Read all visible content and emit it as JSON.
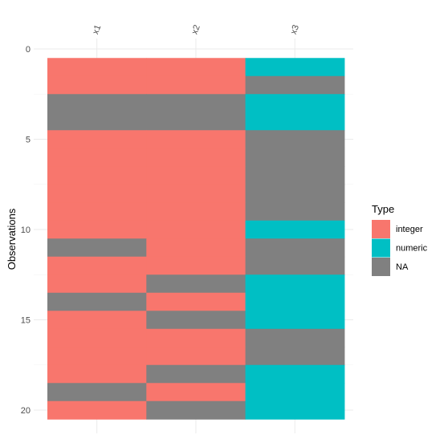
{
  "chart_data": {
    "type": "heatmap",
    "title": "",
    "xlabel": "",
    "ylabel": "Observations",
    "columns": [
      "x1",
      "x2",
      "x3"
    ],
    "rows": [
      1,
      2,
      3,
      4,
      5,
      6,
      7,
      8,
      9,
      10,
      11,
      12,
      13,
      14,
      15,
      16,
      17,
      18,
      19,
      20
    ],
    "y_ticks": [
      0,
      5,
      10,
      15,
      20
    ],
    "ylim": [
      0,
      20.5
    ],
    "y_reversed": true,
    "grid": true,
    "legend": {
      "title": "Type",
      "position": "right",
      "entries": [
        {
          "key": "integer",
          "label": "integer",
          "color": "#F8766D"
        },
        {
          "key": "numeric",
          "label": "numeric",
          "color": "#00BFC4"
        },
        {
          "key": "NA",
          "label": "NA",
          "color": "#808080"
        }
      ]
    },
    "values": [
      [
        "integer",
        "integer",
        "numeric"
      ],
      [
        "integer",
        "integer",
        "NA"
      ],
      [
        "NA",
        "NA",
        "numeric"
      ],
      [
        "NA",
        "NA",
        "numeric"
      ],
      [
        "integer",
        "integer",
        "NA"
      ],
      [
        "integer",
        "integer",
        "NA"
      ],
      [
        "integer",
        "integer",
        "NA"
      ],
      [
        "integer",
        "integer",
        "NA"
      ],
      [
        "integer",
        "integer",
        "NA"
      ],
      [
        "integer",
        "integer",
        "numeric"
      ],
      [
        "NA",
        "integer",
        "NA"
      ],
      [
        "integer",
        "integer",
        "NA"
      ],
      [
        "integer",
        "NA",
        "numeric"
      ],
      [
        "NA",
        "integer",
        "numeric"
      ],
      [
        "integer",
        "NA",
        "numeric"
      ],
      [
        "integer",
        "integer",
        "NA"
      ],
      [
        "integer",
        "integer",
        "NA"
      ],
      [
        "integer",
        "NA",
        "numeric"
      ],
      [
        "NA",
        "integer",
        "numeric"
      ],
      [
        "integer",
        "NA",
        "numeric"
      ]
    ]
  }
}
